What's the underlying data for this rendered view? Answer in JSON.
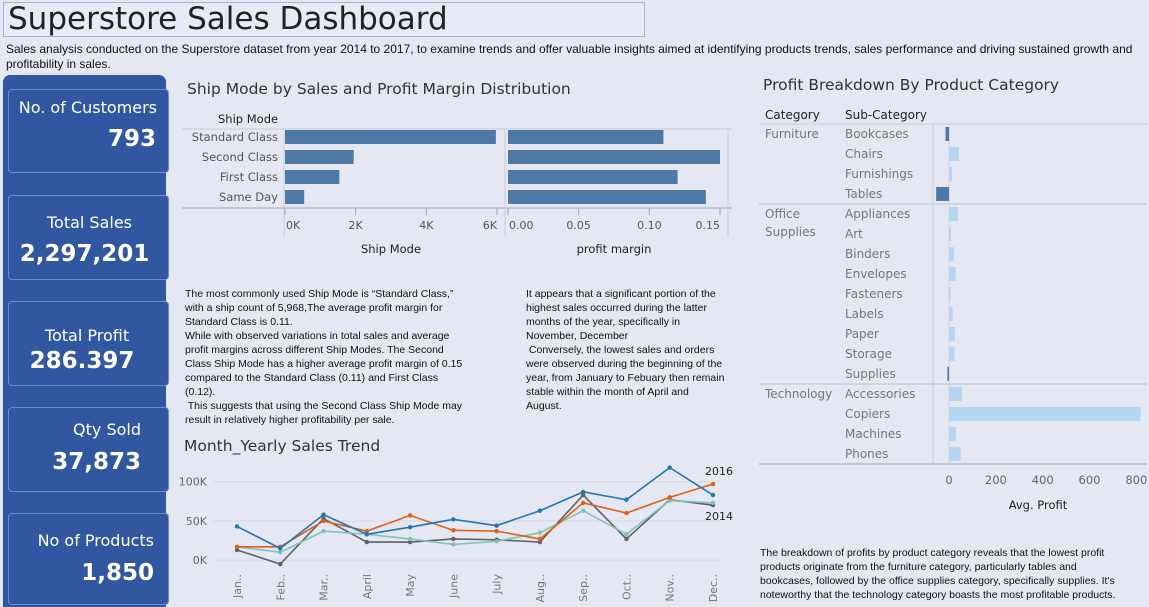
{
  "header": {
    "title": "Superstore Sales Dashboard",
    "subtitle": "Sales analysis conducted on the Superstore dataset from year 2014 to 2017,  to examine trends and offer valuable insights aimed at identifying products trends, sales performance and  driving sustained growth and profitability in sales."
  },
  "kpis": {
    "customers": {
      "label": "No. of Customers",
      "value": "793"
    },
    "sales": {
      "label": "Total Sales",
      "value": "2,297,201"
    },
    "profit": {
      "label": "Total Profit",
      "value": "286.397"
    },
    "qty": {
      "label": "Qty Sold",
      "value": "37,873"
    },
    "products": {
      "label": "No of  Products",
      "value": "1,850"
    }
  },
  "colors": {
    "kpi_bg": "#3057a0",
    "bar_dark": "#4e79a7",
    "bar_light": "#b3d7f0",
    "line_2014": "#5e6166",
    "line_2015": "#7fc3b8",
    "line_2016": "#e15f12",
    "line_2017": "#1f77b4"
  },
  "texts": {
    "ship_text": [
      "The most commonly used Ship Mode is “Standard Class,”",
      "with a ship count of 5,968,The average profit margin for",
      "Standard Class is 0.11.",
      "While with observed variations in total sales and average",
      "profit margins across different Ship Modes. The Second",
      "Class Ship Mode has a higher average profit margin of 0.15",
      "compared to the Standard Class (0.11) and First Class",
      "(0.12).",
      " This suggests that using the Second Class Ship Mode may",
      "result in relatively higher profitability per sale."
    ],
    "trend_text": [
      "It appears that a significant portion of the",
      "highest sales occurred during the latter",
      "months of the year, specifically in",
      "November, December",
      " Conversely, the lowest sales and orders",
      "were observed during the beginning of the",
      "year, from January to Febuary then remain",
      "stable within the month of April and",
      "August."
    ],
    "profit_text": [
      "The breakdown of profits by product category reveals that the lowest profit",
      "products originate from the furniture category, particularly tables and",
      "bookcases, followed by the office supplies category, specifically supplies. It's",
      "noteworthy that the technology category boasts the most profitable products."
    ]
  },
  "chart_data": [
    {
      "type": "bar",
      "title": "Ship Mode by Sales and Profit Margin Distribution",
      "row_header": "Ship Mode",
      "categories": [
        "Standard Class",
        "Second Class",
        "First Class",
        "Same Day"
      ],
      "panels": [
        {
          "name": "Ship Mode",
          "xlabel": "Ship Mode",
          "values": [
            5968,
            1945,
            1538,
            543
          ],
          "ticks": [
            {
              "v": 0,
              "label": "0K"
            },
            {
              "v": 2000,
              "label": "2K"
            },
            {
              "v": 4000,
              "label": "4K"
            },
            {
              "v": 6000,
              "label": "6K"
            }
          ],
          "xlim": [
            0,
            6000
          ]
        },
        {
          "name": "profit margin",
          "xlabel": "profit margin",
          "values": [
            0.11,
            0.15,
            0.12,
            0.14
          ],
          "ticks": [
            {
              "v": 0,
              "label": "0.00"
            },
            {
              "v": 0.05,
              "label": "0.05"
            },
            {
              "v": 0.1,
              "label": "0.10"
            },
            {
              "v": 0.15,
              "label": "0.15"
            }
          ],
          "xlim": [
            0,
            0.15
          ]
        }
      ]
    },
    {
      "type": "line",
      "title": "Month_Yearly Sales Trend",
      "categories": [
        "Jan..",
        "Feb..",
        "Mar..",
        "April",
        "May",
        "June",
        "July",
        "Aug..",
        "Sep..",
        "Oct..",
        "Nov..",
        "Dec.."
      ],
      "yticks": [
        {
          "v": 0,
          "label": "0K"
        },
        {
          "v": 50000,
          "label": "50K"
        },
        {
          "v": 100000,
          "label": "100K"
        }
      ],
      "ylim": [
        -10000,
        120000
      ],
      "series": [
        {
          "key": "s2014",
          "values": [
            13000,
            -5000,
            53000,
            23000,
            23000,
            27000,
            26000,
            23000,
            83000,
            27000,
            77000,
            70000
          ]
        },
        {
          "key": "s2015",
          "values": [
            17000,
            10000,
            37000,
            33000,
            27000,
            20000,
            24000,
            35000,
            63000,
            33000,
            76000,
            73000
          ]
        },
        {
          "key": "s2016",
          "values": [
            17000,
            17000,
            50000,
            37000,
            57000,
            38000,
            37000,
            27000,
            73000,
            60000,
            80000,
            97000
          ]
        },
        {
          "key": "s2017",
          "values": [
            43000,
            15000,
            58000,
            33000,
            42000,
            52000,
            44000,
            63000,
            87000,
            77000,
            118000,
            83000
          ]
        }
      ],
      "end_labels": [
        {
          "series": "s2016",
          "label": "2016"
        },
        {
          "series": "s2014",
          "label": "2014"
        }
      ]
    },
    {
      "type": "bar",
      "title": "Profit Breakdown By Product Category",
      "col_headers": [
        "Category",
        "Sub-Category"
      ],
      "xlabel": "Avg. Profit",
      "xlim": [
        -60,
        820
      ],
      "ticks": [
        0,
        200,
        400,
        600,
        800
      ],
      "groups": [
        {
          "category": "Furniture",
          "items": [
            {
              "name": "Bookcases",
              "value": -15
            },
            {
              "name": "Chairs",
              "value": 43
            },
            {
              "name": "Furnishings",
              "value": 13
            },
            {
              "name": "Tables",
              "value": -55
            }
          ]
        },
        {
          "category": "Office\nSupplies",
          "items": [
            {
              "name": "Appliances",
              "value": 39
            },
            {
              "name": "Art",
              "value": 8
            },
            {
              "name": "Binders",
              "value": 20
            },
            {
              "name": "Envelopes",
              "value": 28
            },
            {
              "name": "Fasteners",
              "value": 4
            },
            {
              "name": "Labels",
              "value": 15
            },
            {
              "name": "Paper",
              "value": 25
            },
            {
              "name": "Storage",
              "value": 23
            },
            {
              "name": "Supplies",
              "value": -7
            }
          ]
        },
        {
          "category": "Technology",
          "items": [
            {
              "name": "Accessories",
              "value": 55
            },
            {
              "name": "Copiers",
              "value": 818
            },
            {
              "name": "Machines",
              "value": 30
            },
            {
              "name": "Phones",
              "value": 50
            }
          ]
        }
      ]
    }
  ]
}
